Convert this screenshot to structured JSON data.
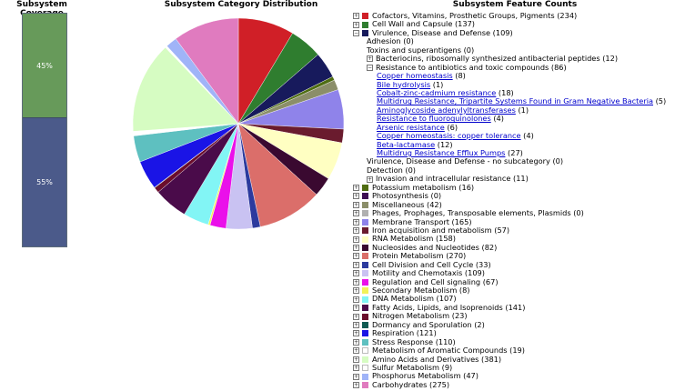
{
  "coverage": {
    "title": "Subsystem Coverage",
    "in_subsystem_label": "45%",
    "not_in_subsystem_label": "55%",
    "in_subsystem_fraction": 0.45
  },
  "pie": {
    "title": "Subsystem Category Distribution"
  },
  "features": {
    "title": "Subsystem Feature Counts",
    "categories": [
      {
        "label": "Cofactors, Vitamins, Prosthetic Groups, Pigments (234)",
        "color": "#d01f27",
        "value": 234
      },
      {
        "label": "Cell Wall and Capsule (137)",
        "color": "#2f7d2f",
        "value": 137
      },
      {
        "label": "Virulence, Disease and Defense (109)",
        "color": "#171a5c",
        "value": 109,
        "expanded": true
      },
      {
        "label": "Potassium metabolism (16)",
        "color": "#4f6d12",
        "value": 16
      },
      {
        "label": "Photosynthesis (0)",
        "color": "#3d0f52",
        "value": 0
      },
      {
        "label": "Miscellaneous (42)",
        "color": "#8b8e69",
        "value": 42
      },
      {
        "label": "Phages, Prophages, Transposable elements, Plasmids (0)",
        "color": "#b0b0b0",
        "value": 0
      },
      {
        "label": "Membrane Transport (165)",
        "color": "#8f83ea",
        "value": 165
      },
      {
        "label": "Iron acquisition and metabolism (57)",
        "color": "#6a1b2e",
        "value": 57
      },
      {
        "label": "RNA Metabolism (158)",
        "color": "#ffffc2",
        "value": 158
      },
      {
        "label": "Nucleosides and Nucleotides (82)",
        "color": "#3a0930",
        "value": 82
      },
      {
        "label": "Protein Metabolism (270)",
        "color": "#db6e6a",
        "value": 270
      },
      {
        "label": "Cell Division and Cell Cycle (33)",
        "color": "#2c3a9e",
        "value": 33
      },
      {
        "label": "Motility and Chemotaxis (109)",
        "color": "#c9c2f2",
        "value": 109
      },
      {
        "label": "Regulation and Cell signaling (67)",
        "color": "#ea10ea",
        "value": 67
      },
      {
        "label": "Secondary Metabolism (8)",
        "color": "#f2f25a",
        "value": 8
      },
      {
        "label": "DNA Metabolism (107)",
        "color": "#82f5f5",
        "value": 107
      },
      {
        "label": "Fatty Acids, Lipids, and Isoprenoids (141)",
        "color": "#4a0b4a",
        "value": 141
      },
      {
        "label": "Nitrogen Metabolism (23)",
        "color": "#6b0d2c",
        "value": 23
      },
      {
        "label": "Dormancy and Sporulation (2)",
        "color": "#0f5b52",
        "value": 2
      },
      {
        "label": "Respiration (121)",
        "color": "#1a14e6",
        "value": 121
      },
      {
        "label": "Stress Response (110)",
        "color": "#5ec0c0",
        "value": 110
      },
      {
        "label": "Metabolism of Aromatic Compounds (19)",
        "color": "#ffffff",
        "value": 19
      },
      {
        "label": "Amino Acids and Derivatives (381)",
        "color": "#d6fcc2",
        "value": 381
      },
      {
        "label": "Sulfur Metabolism (9)",
        "color": "#ffffff",
        "value": 9
      },
      {
        "label": "Phosphorus Metabolism (47)",
        "color": "#a0b4f8",
        "value": 47
      },
      {
        "label": "Carbohydrates (275)",
        "color": "#e07bbf",
        "value": 275
      }
    ],
    "virulence_children": [
      {
        "label": "Adhesion (0)",
        "kind": "plain"
      },
      {
        "label": "Toxins and superantigens (0)",
        "kind": "plain"
      },
      {
        "label": "Bacteriocins, ribosomally synthesized antibacterial peptides (12)",
        "kind": "expandable"
      },
      {
        "label": "Resistance to antibiotics and toxic compounds (86)",
        "kind": "expandable-open"
      }
    ],
    "resistance_children": [
      {
        "name": "Copper homeostasis",
        "count": "(8)"
      },
      {
        "name": "Bile hydrolysis",
        "count": "(1)"
      },
      {
        "name": "Cobalt-zinc-cadmium resistance",
        "count": "(18)"
      },
      {
        "name": "Multidrug Resistance, Tripartite Systems Found in Gram Negative Bacteria",
        "count": "(5)"
      },
      {
        "name": "Aminoglycoside adenylyltransferases",
        "count": "(1)"
      },
      {
        "name": "Resistance to fluoroquinolones",
        "count": "(4)"
      },
      {
        "name": "Arsenic resistance",
        "count": "(6)"
      },
      {
        "name": "Copper homeostasis: copper tolerance",
        "count": "(4)"
      },
      {
        "name": "Beta-lactamase",
        "count": "(12)"
      },
      {
        "name": "Multidrug Resistance Efflux Pumps",
        "count": "(27)"
      }
    ],
    "virulence_tail": [
      {
        "label": "Virulence, Disease and Defense - no subcategory (0)",
        "kind": "plain"
      },
      {
        "label": "Detection (0)",
        "kind": "plain"
      },
      {
        "label": "Invasion and intracellular resistance (11)",
        "kind": "expandable"
      }
    ]
  }
}
